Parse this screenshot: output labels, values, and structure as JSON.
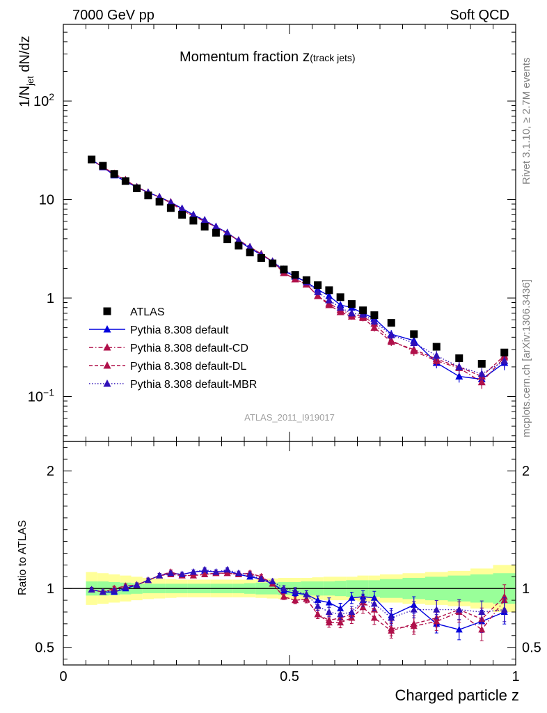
{
  "header": {
    "left": "7000 GeV pp",
    "right": "Soft QCD"
  },
  "side": {
    "top": "Rivet 3.1.10, ≥ 2.7M events",
    "bottom": "mcplots.cern.ch [arXiv:1306.3436]"
  },
  "watermark": "ATLAS_2011_I919017",
  "chart_data": [
    {
      "type": "scatter",
      "title_main": "Momentum fraction ",
      "title_z": "z",
      "title_sub": "(track jets)",
      "ylabel": {
        "prefix": "1/N",
        "sub": "jet",
        "suffix": " dN/dz"
      },
      "yscale": "log",
      "ylim": [
        0.035,
        600
      ],
      "xlim": [
        0,
        1
      ],
      "y_ticks": [
        {
          "v": 0.1,
          "base": "10",
          "exp": "−1"
        },
        {
          "v": 1,
          "base": "1",
          "exp": ""
        },
        {
          "v": 10,
          "base": "10",
          "exp": ""
        },
        {
          "v": 100,
          "base": "10",
          "exp": "2"
        }
      ],
      "legend_position": "bottom-left",
      "x": [
        0.0625,
        0.0875,
        0.1125,
        0.1375,
        0.1625,
        0.1875,
        0.2125,
        0.2375,
        0.2625,
        0.2875,
        0.3125,
        0.3375,
        0.3625,
        0.3875,
        0.4125,
        0.4375,
        0.4625,
        0.4875,
        0.5125,
        0.5375,
        0.5625,
        0.5875,
        0.6125,
        0.6375,
        0.6625,
        0.6875,
        0.725,
        0.775,
        0.825,
        0.875,
        0.925,
        0.975
      ],
      "series": [
        {
          "name": "ATLAS",
          "color": "#000000",
          "marker": "square",
          "dash": "",
          "values": [
            25.5,
            22,
            18.2,
            15.4,
            13,
            11,
            9.5,
            8.2,
            7,
            6.1,
            5.3,
            4.6,
            3.95,
            3.4,
            2.9,
            2.55,
            2.25,
            1.95,
            1.72,
            1.52,
            1.35,
            1.2,
            1.02,
            0.87,
            0.75,
            0.67,
            0.56,
            0.43,
            0.32,
            0.245,
            0.215,
            0.28
          ]
        },
        {
          "name": "Pythia 8.308 default",
          "color": "#0000dd",
          "marker": "triangle",
          "dash": "",
          "values": [
            25.3,
            21.3,
            17.6,
            15.3,
            13.3,
            11.8,
            10.6,
            9.4,
            8.1,
            7,
            6.1,
            5.3,
            4.6,
            3.8,
            3.2,
            2.75,
            2.35,
            1.9,
            1.65,
            1.45,
            1.22,
            1.05,
            0.85,
            0.8,
            0.7,
            0.62,
            0.43,
            0.37,
            0.22,
            0.16,
            0.15,
            0.22
          ]
        },
        {
          "name": "Pythia 8.308 default-CD",
          "color": "#b0104a",
          "marker": "triangle",
          "dash": "6 3 1.5 3",
          "values": [
            25.3,
            21.3,
            18.3,
            15.8,
            13.4,
            11.8,
            10.6,
            9.4,
            7.8,
            6.8,
            6,
            5.25,
            4.5,
            3.85,
            3.3,
            2.8,
            2.35,
            1.8,
            1.55,
            1.38,
            1.05,
            0.88,
            0.76,
            0.68,
            0.65,
            0.55,
            0.37,
            0.29,
            0.23,
            0.195,
            0.14,
            0.25
          ]
        },
        {
          "name": "Pythia 8.308 default-DL",
          "color": "#b0104a",
          "marker": "triangle",
          "dash": "5 3",
          "values": [
            25.3,
            21.3,
            18.3,
            15.8,
            13.4,
            11.8,
            10.6,
            9.2,
            7.8,
            6.8,
            6,
            5.25,
            4.5,
            3.85,
            3.3,
            2.8,
            2.35,
            1.8,
            1.55,
            1.38,
            1.05,
            0.85,
            0.72,
            0.65,
            0.63,
            0.5,
            0.36,
            0.3,
            0.24,
            0.2,
            0.16,
            0.26
          ]
        },
        {
          "name": "Pythia 8.308 default-MBR",
          "color": "#3010b8",
          "marker": "triangle",
          "dash": "1.5 2.5",
          "values": [
            25.3,
            21.3,
            17.8,
            15.5,
            13.3,
            11.8,
            10.6,
            9.3,
            8.1,
            7,
            6.2,
            5.3,
            4.6,
            3.85,
            3.3,
            2.75,
            2.35,
            1.95,
            1.68,
            1.45,
            1.15,
            0.95,
            0.8,
            0.7,
            0.68,
            0.58,
            0.42,
            0.35,
            0.26,
            0.2,
            0.17,
            0.23
          ]
        }
      ]
    },
    {
      "type": "scatter",
      "ylabel": "Ratio to ATLAS",
      "xlabel": "Charged particle z",
      "ylim": [
        0.35,
        2.25
      ],
      "xlim": [
        0,
        1
      ],
      "y_ticks": [
        "0.5",
        "1",
        "2"
      ],
      "x_ticks": [
        "0",
        "0.5",
        "1"
      ],
      "reference": 1,
      "band_inner": [
        0.06,
        0.06,
        0.055,
        0.05,
        0.045,
        0.04,
        0.04,
        0.04,
        0.04,
        0.04,
        0.04,
        0.04,
        0.04,
        0.04,
        0.045,
        0.05,
        0.05,
        0.055,
        0.055,
        0.06,
        0.06,
        0.06,
        0.065,
        0.07,
        0.07,
        0.07,
        0.08,
        0.09,
        0.1,
        0.11,
        0.12,
        0.13
      ],
      "band_outer": [
        0.14,
        0.13,
        0.12,
        0.11,
        0.1,
        0.09,
        0.085,
        0.08,
        0.075,
        0.075,
        0.075,
        0.075,
        0.075,
        0.075,
        0.075,
        0.08,
        0.085,
        0.09,
        0.09,
        0.09,
        0.095,
        0.1,
        0.1,
        0.1,
        0.11,
        0.11,
        0.12,
        0.13,
        0.14,
        0.15,
        0.17,
        0.2
      ],
      "series": [
        {
          "name": "Pythia 8.308 default",
          "values": [
            0.99,
            0.97,
            0.97,
            1.0,
            1.03,
            1.07,
            1.11,
            1.13,
            1.12,
            1.14,
            1.15,
            1.14,
            1.15,
            1.12,
            1.1,
            1.08,
            1.04,
            0.98,
            0.96,
            0.95,
            0.9,
            0.88,
            0.83,
            0.92,
            0.93,
            0.92,
            0.77,
            0.86,
            0.7,
            0.65,
            0.72,
            0.8
          ]
        },
        {
          "name": "Pythia 8.308 default-CD",
          "values": [
            0.99,
            0.97,
            1.0,
            1.02,
            1.03,
            1.07,
            1.11,
            1.14,
            1.11,
            1.11,
            1.12,
            1.13,
            1.13,
            1.12,
            1.13,
            1.1,
            1.04,
            0.93,
            0.9,
            0.91,
            0.78,
            0.73,
            0.75,
            0.78,
            0.88,
            0.82,
            0.66,
            0.68,
            0.72,
            0.8,
            0.65,
            0.9
          ]
        },
        {
          "name": "Pythia 8.308 default-DL",
          "values": [
            0.99,
            0.97,
            1.0,
            1.02,
            1.03,
            1.07,
            1.11,
            1.12,
            1.11,
            1.11,
            1.12,
            1.13,
            1.13,
            1.12,
            1.13,
            1.1,
            1.04,
            0.93,
            0.9,
            0.91,
            0.78,
            0.71,
            0.71,
            0.75,
            0.84,
            0.75,
            0.64,
            0.7,
            0.75,
            0.82,
            0.74,
            0.93
          ]
        },
        {
          "name": "Pythia 8.308 default-MBR",
          "values": [
            0.99,
            0.97,
            0.98,
            1.01,
            1.03,
            1.07,
            1.11,
            1.13,
            1.12,
            1.14,
            1.16,
            1.14,
            1.16,
            1.13,
            1.12,
            1.08,
            1.06,
            1.0,
            0.98,
            0.95,
            0.85,
            0.8,
            0.78,
            0.8,
            0.9,
            0.87,
            0.75,
            0.82,
            0.82,
            0.82,
            0.8,
            0.82
          ]
        }
      ]
    }
  ]
}
